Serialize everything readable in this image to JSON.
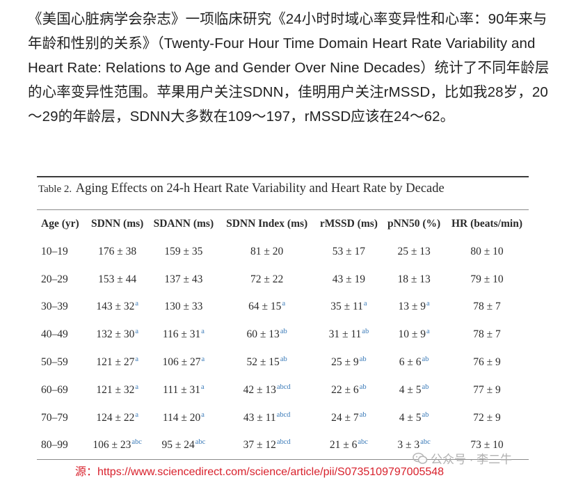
{
  "intro": {
    "paragraph": "《美国心脏病学会杂志》一项临床研究《24小时时域心率变异性和心率：90年来与年龄和性别的关系》（Twenty-Four Hour Time Domain Heart Rate Variability and Heart Rate: Relations to Age and Gender Over Nine Decades）统计了不同年龄层的心率变异性范围。苹果用户关注SDNN，佳明用户关注rMSSD，比如我28岁，20～29的年龄层，SDNN大多数在109～197，rMSSD应该在24～62。"
  },
  "table": {
    "caption_label": "Table 2.",
    "caption_title": "Aging Effects on 24-h Heart Rate Variability and Heart Rate by Decade",
    "headers": [
      "Age (yr)",
      "SDNN (ms)",
      "SDANN (ms)",
      "SDNN Index (ms)",
      "rMSSD (ms)",
      "pNN50 (%)",
      "HR (beats/min)"
    ],
    "rows": [
      [
        {
          "v": "10–19"
        },
        {
          "v": "176 ± 38"
        },
        {
          "v": "159 ± 35"
        },
        {
          "v": "81 ± 20"
        },
        {
          "v": "53 ± 17"
        },
        {
          "v": "25 ± 13"
        },
        {
          "v": "80 ± 10"
        }
      ],
      [
        {
          "v": "20–29"
        },
        {
          "v": "153 ± 44"
        },
        {
          "v": "137 ± 43"
        },
        {
          "v": "72 ± 22"
        },
        {
          "v": "43 ± 19"
        },
        {
          "v": "18 ± 13"
        },
        {
          "v": "79 ± 10"
        }
      ],
      [
        {
          "v": "30–39"
        },
        {
          "v": "143 ± 32",
          "s": "a"
        },
        {
          "v": "130 ± 33"
        },
        {
          "v": "64 ± 15",
          "s": "a"
        },
        {
          "v": "35 ± 11",
          "s": "a"
        },
        {
          "v": "13 ± 9",
          "s": "a"
        },
        {
          "v": "78 ± 7"
        }
      ],
      [
        {
          "v": "40–49"
        },
        {
          "v": "132 ± 30",
          "s": "a"
        },
        {
          "v": "116 ± 31",
          "s": "a"
        },
        {
          "v": "60 ± 13",
          "s": "ab"
        },
        {
          "v": "31 ± 11",
          "s": "ab"
        },
        {
          "v": "10 ± 9",
          "s": "a"
        },
        {
          "v": "78 ± 7"
        }
      ],
      [
        {
          "v": "50–59"
        },
        {
          "v": "121 ± 27",
          "s": "a"
        },
        {
          "v": "106 ± 27",
          "s": "a"
        },
        {
          "v": "52 ± 15",
          "s": "ab"
        },
        {
          "v": "25 ± 9",
          "s": "ab"
        },
        {
          "v": "6 ± 6",
          "s": "ab"
        },
        {
          "v": "76 ± 9"
        }
      ],
      [
        {
          "v": "60–69"
        },
        {
          "v": "121 ± 32",
          "s": "a"
        },
        {
          "v": "111 ± 31",
          "s": "a"
        },
        {
          "v": "42 ± 13",
          "s": "abcd"
        },
        {
          "v": "22 ± 6",
          "s": "ab"
        },
        {
          "v": "4 ± 5",
          "s": "ab"
        },
        {
          "v": "77 ± 9"
        }
      ],
      [
        {
          "v": "70–79"
        },
        {
          "v": "124 ± 22",
          "s": "a"
        },
        {
          "v": "114 ± 20",
          "s": "a"
        },
        {
          "v": "43 ± 11",
          "s": "abcd"
        },
        {
          "v": "24 ± 7",
          "s": "ab"
        },
        {
          "v": "4 ± 5",
          "s": "ab"
        },
        {
          "v": "72 ± 9"
        }
      ],
      [
        {
          "v": "80–99"
        },
        {
          "v": "106 ± 23",
          "s": "abc"
        },
        {
          "v": "95 ± 24",
          "s": "abc"
        },
        {
          "v": "37 ± 12",
          "s": "abcd"
        },
        {
          "v": "21 ± 6",
          "s": "abc"
        },
        {
          "v": "3 ± 3",
          "s": "abc"
        },
        {
          "v": "73 ± 10"
        }
      ]
    ]
  },
  "source": {
    "text": "源：https://www.sciencedirect.com/science/article/pii/S0735109797005548"
  },
  "watermark": {
    "icon": "wechat-icon",
    "text": "公众号 · 李二牛"
  },
  "colors": {
    "source_red": "#d8212c",
    "superscript_blue": "#3a7ab8",
    "watermark_gray": "#a9a9a9"
  }
}
